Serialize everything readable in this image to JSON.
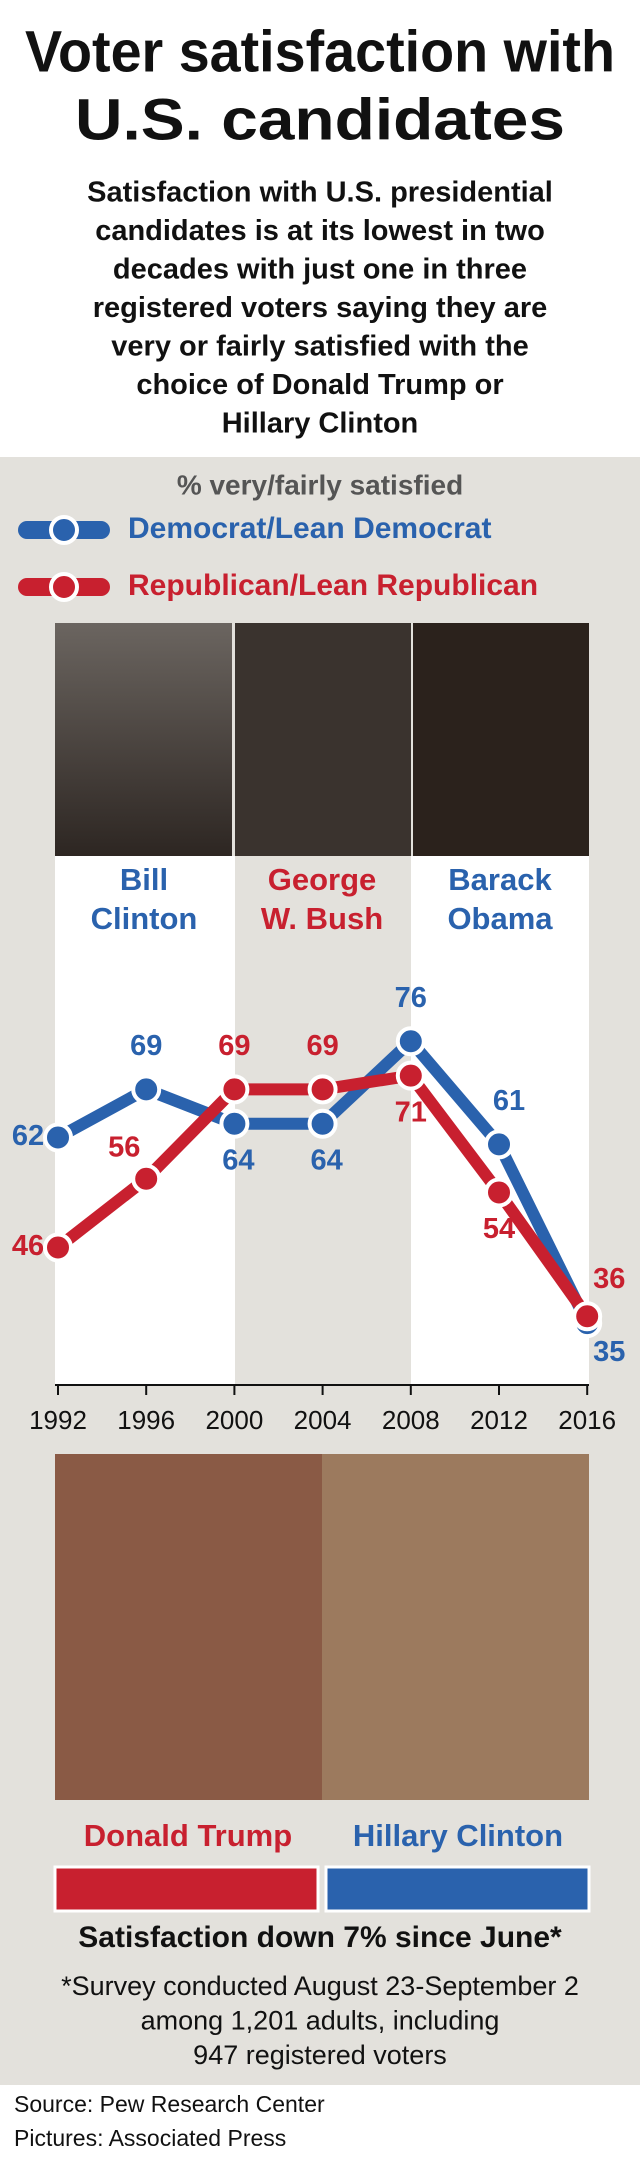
{
  "title": [
    "Voter satisfaction with",
    "U.S. candidates"
  ],
  "subtitle": [
    "Satisfaction with U.S. presidential",
    "candidates is at its lowest in two",
    "decades with just one in three",
    "registered voters saying they are",
    "very or fairly satisfied with the",
    "choice of Donald Trump or",
    "Hillary Clinton"
  ],
  "chart_data": {
    "type": "line",
    "title": "% very/fairly satisfied",
    "categories": [
      "1992",
      "1996",
      "2000",
      "2004",
      "2008",
      "2012",
      "2016"
    ],
    "series": [
      {
        "name": "Democrat/Lean Democrat",
        "color": "#2a62ad",
        "values": [
          62,
          69,
          64,
          64,
          76,
          61,
          35
        ]
      },
      {
        "name": "Republican/Lean Republican",
        "color": "#c8202f",
        "values": [
          46,
          56,
          69,
          69,
          71,
          54,
          36
        ]
      }
    ],
    "ylim": [
      26,
      90
    ],
    "presidents": [
      {
        "name": [
          "Bill",
          "Clinton"
        ],
        "color": "#2a62ad"
      },
      {
        "name": [
          "George",
          "W. Bush"
        ],
        "color": "#c8202f"
      },
      {
        "name": [
          "Barack",
          "Obama"
        ],
        "color": "#2a62ad"
      }
    ]
  },
  "candidates": [
    {
      "name": "Donald Trump",
      "color": "#c8202f"
    },
    {
      "name": "Hillary Clinton",
      "color": "#2a62ad"
    }
  ],
  "note": "Satisfaction down 7% since June*",
  "footnote": [
    "*Survey conducted August 23-September 2",
    "among 1,201 adults, including",
    "947 registered voters"
  ],
  "source": [
    "Source: Pew Research Center",
    "Pictures: Associated Press"
  ]
}
